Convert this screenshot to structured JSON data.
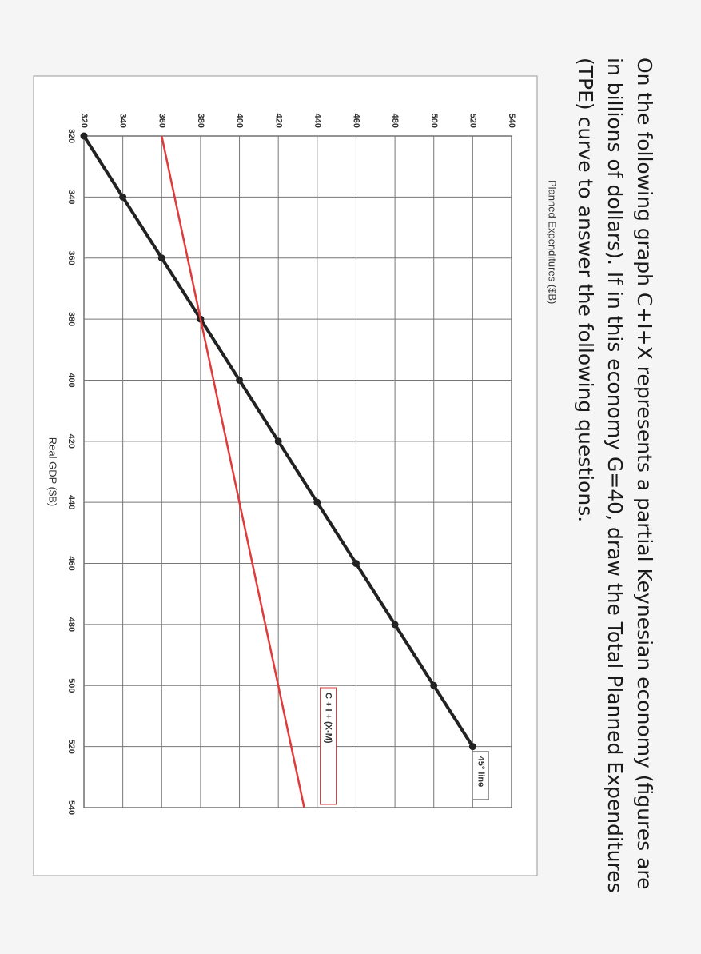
{
  "question": "On the following graph C+I+X represents a partial Keynesian economy (figures are in billions of dollars). If in this economy G=40, draw the Total Planned Expenditures (TPE) curve to answer the following questions.",
  "chart_data": {
    "type": "line",
    "x_label": "Real GDP ($B)",
    "y_label": "Planned Expenditures ($B)",
    "xlim": [
      320,
      540
    ],
    "ylim": [
      320,
      540
    ],
    "xticks": [
      320,
      340,
      360,
      380,
      400,
      420,
      440,
      460,
      480,
      500,
      520,
      540
    ],
    "yticks": [
      320,
      340,
      360,
      380,
      400,
      420,
      440,
      460,
      480,
      500,
      520,
      540
    ],
    "grid": true,
    "series": [
      {
        "name": "45° line",
        "color": "#222222",
        "x": [
          320,
          340,
          360,
          380,
          400,
          420,
          440,
          460,
          480,
          500,
          520
        ],
        "values": [
          320,
          340,
          360,
          380,
          400,
          420,
          440,
          460,
          480,
          500,
          520
        ],
        "markers": true
      },
      {
        "name": "C + I + (X-M)",
        "color": "#e03a3a",
        "x": [
          320,
          380,
          540
        ],
        "values": [
          360,
          380,
          433.3
        ],
        "markers": false
      }
    ]
  }
}
